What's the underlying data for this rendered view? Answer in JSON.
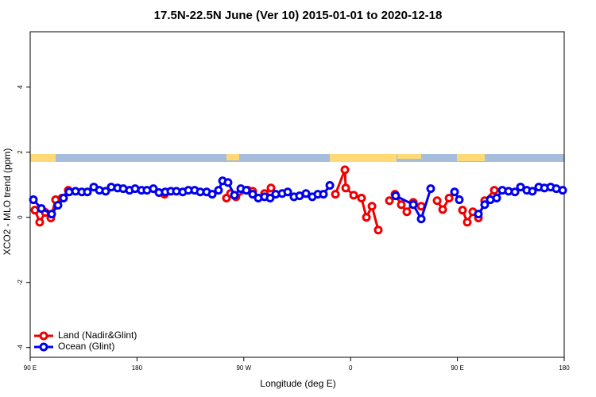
{
  "chart_data": {
    "type": "line",
    "title": "17.5N-22.5N June (Ver 10)   2015-01-01 to 2020-12-18",
    "x_label": "Longitude (deg E)",
    "y_label": "XCO2 - MLO trend (ppm)",
    "xlim": [
      90,
      540
    ],
    "xticks": [
      {
        "value": 90,
        "label": "90 E"
      },
      180,
      {
        "value": 270,
        "label": "90 W"
      },
      {
        "value": 360,
        "label": "0"
      },
      {
        "value": 450,
        "label": "90 E"
      },
      {
        "value": 540,
        "label": "180"
      }
    ],
    "ylim": [
      -4.3,
      5.7
    ],
    "yticks": [
      -4,
      -2,
      0,
      2,
      4
    ],
    "legend": "bottom-left",
    "series": [
      {
        "name": "Land (Nadir&Glint)",
        "color": "#ee0000",
        "x": [
          94.0,
          98.0,
          102.7,
          107.4,
          111.4,
          116.8,
          122.1,
          null,
          203.2,
          null,
          255.4,
          258.8,
          263.4,
          273.5,
          277.5,
          null,
          287.5,
          292.9,
          null,
          347.2,
          355.2,
          355.9,
          362.6,
          369.2,
          373.3,
          378.0,
          383.3,
          null,
          392.7,
          397.4,
          402.7,
          407.4,
          412.8,
          419.5,
          null,
          432.9,
          437.6,
          443.0,
          null,
          454.3,
          458.3,
          463.0,
          467.7,
          473.0,
          481.1
        ],
        "values": [
          0.22,
          -0.15,
          0.15,
          -0.02,
          0.54,
          0.59,
          0.83,
          null,
          0.71,
          null,
          0.59,
          0.73,
          0.63,
          0.83,
          0.8,
          null,
          0.73,
          0.9,
          null,
          0.71,
          1.46,
          0.9,
          0.68,
          0.59,
          0.0,
          0.34,
          -0.39,
          null,
          0.51,
          0.71,
          0.39,
          0.17,
          0.46,
          0.34,
          null,
          0.51,
          0.24,
          0.59,
          null,
          0.22,
          -0.15,
          0.17,
          -0.02,
          0.51,
          0.83
        ]
      },
      {
        "name": "Ocean (Glint)",
        "color": "#0000ee",
        "x": [
          92.7,
          99.4,
          108.1,
          113.4,
          118.1,
          122.8,
          128.2,
          133.5,
          138.2,
          143.6,
          148.3,
          153.6,
          158.3,
          163.7,
          168.4,
          173.7,
          178.4,
          183.8,
          188.4,
          193.8,
          198.5,
          203.8,
          208.5,
          213.2,
          218.6,
          223.3,
          228.6,
          233.3,
          238.7,
          243.4,
          248.7,
          252.1,
          256.7,
          262.1,
          267.5,
          272.1,
          277.5,
          282.2,
          287.5,
          292.2,
          296.9,
          302.3,
          307.0,
          312.3,
          317.0,
          322.4,
          327.7,
          332.4,
          337.1,
          342.5,
          null,
          398.0,
          412.8,
          419.5,
          427.5,
          null,
          447.6,
          451.6,
          null,
          467.7,
          473.0,
          477.7,
          483.1,
          487.8,
          493.1,
          498.5,
          503.2,
          508.5,
          513.2,
          518.6,
          523.3,
          528.6,
          533.3,
          538.7
        ],
        "values": [
          0.54,
          0.27,
          0.1,
          0.37,
          0.59,
          0.78,
          0.8,
          0.78,
          0.78,
          0.93,
          0.83,
          0.8,
          0.93,
          0.9,
          0.88,
          0.83,
          0.88,
          0.83,
          0.83,
          0.88,
          0.76,
          0.78,
          0.8,
          0.8,
          0.78,
          0.83,
          0.83,
          0.78,
          0.78,
          0.71,
          0.83,
          1.12,
          1.07,
          0.68,
          0.88,
          0.83,
          0.71,
          0.59,
          0.63,
          0.59,
          0.71,
          0.73,
          0.78,
          0.63,
          0.66,
          0.73,
          0.63,
          0.71,
          0.71,
          0.98,
          null,
          0.66,
          0.39,
          -0.05,
          0.88,
          null,
          0.78,
          0.54,
          null,
          0.1,
          0.39,
          0.54,
          0.59,
          0.83,
          0.8,
          0.78,
          0.93,
          0.83,
          0.8,
          0.93,
          0.9,
          0.93,
          0.88,
          0.83
        ]
      }
    ]
  }
}
